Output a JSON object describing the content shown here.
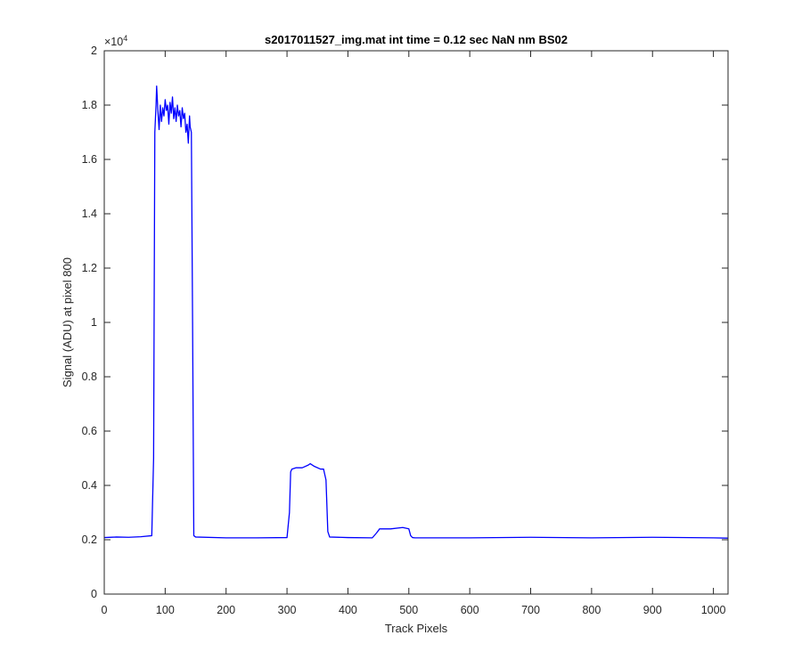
{
  "chart_data": {
    "type": "line",
    "title": "s2017011527_img.mat int time = 0.12 sec  NaN nm BS02",
    "xlabel": "Track Pixels",
    "ylabel": "Signal (ADU) at pixel 800",
    "y_exponent_base": "×10",
    "y_exponent_power": "4",
    "xlim": [
      0,
      1024
    ],
    "ylim": [
      0,
      2
    ],
    "y_scale_factor": 10000,
    "x_ticks": [
      0,
      100,
      200,
      300,
      400,
      500,
      600,
      700,
      800,
      900,
      1000
    ],
    "x_tick_labels": [
      "0",
      "100",
      "200",
      "300",
      "400",
      "500",
      "600",
      "700",
      "800",
      "900",
      "1000"
    ],
    "y_ticks": [
      0,
      0.2,
      0.4,
      0.6,
      0.8,
      1,
      1.2,
      1.4,
      1.6,
      1.8,
      2
    ],
    "y_tick_labels": [
      "0",
      "0.2",
      "0.4",
      "0.6",
      "0.8",
      "1",
      "1.2",
      "1.4",
      "1.6",
      "1.8",
      "2"
    ],
    "grid": false,
    "series": [
      {
        "color": "#0000ff",
        "x": [
          0,
          20,
          40,
          60,
          78,
          81,
          83,
          85,
          86,
          88,
          90,
          92,
          94,
          96,
          98,
          100,
          102,
          104,
          106,
          108,
          110,
          112,
          114,
          116,
          118,
          120,
          122,
          124,
          126,
          128,
          130,
          132,
          134,
          136,
          138,
          140,
          141,
          143,
          145,
          147,
          150,
          200,
          250,
          300,
          304,
          306,
          308,
          315,
          325,
          335,
          338,
          345,
          355,
          360,
          364,
          367,
          370,
          400,
          440,
          447,
          452,
          470,
          490,
          500,
          503,
          506,
          510,
          600,
          700,
          800,
          900,
          1000,
          1024
        ],
        "y": [
          0.208,
          0.21,
          0.209,
          0.211,
          0.215,
          0.5,
          1.7,
          1.8,
          1.87,
          1.78,
          1.71,
          1.8,
          1.74,
          1.79,
          1.76,
          1.82,
          1.78,
          1.8,
          1.73,
          1.81,
          1.77,
          1.83,
          1.75,
          1.79,
          1.74,
          1.8,
          1.76,
          1.78,
          1.72,
          1.79,
          1.75,
          1.77,
          1.7,
          1.73,
          1.66,
          1.76,
          1.72,
          1.7,
          1.0,
          0.215,
          0.21,
          0.207,
          0.207,
          0.208,
          0.3,
          0.45,
          0.46,
          0.465,
          0.465,
          0.475,
          0.48,
          0.47,
          0.46,
          0.46,
          0.42,
          0.23,
          0.21,
          0.208,
          0.207,
          0.225,
          0.24,
          0.24,
          0.245,
          0.24,
          0.215,
          0.208,
          0.207,
          0.207,
          0.209,
          0.207,
          0.209,
          0.207,
          0.206
        ]
      }
    ]
  }
}
